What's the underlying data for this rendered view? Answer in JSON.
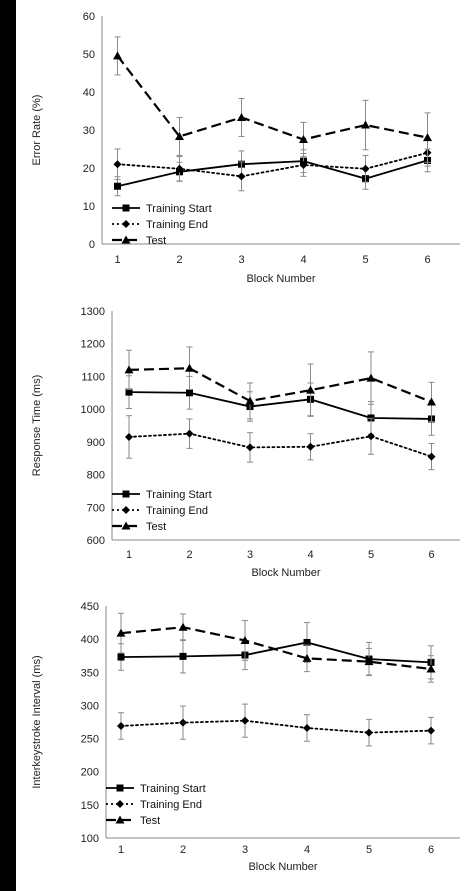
{
  "chart_data": [
    {
      "type": "line",
      "xlabel": "Block Number",
      "ylabel": "Error Rate (%)",
      "ylim": [
        0,
        60
      ],
      "yticks": [
        0,
        10,
        20,
        30,
        40,
        50,
        60
      ],
      "categories": [
        "1",
        "2",
        "3",
        "4",
        "5",
        "6"
      ],
      "legend": "bottom-left",
      "grid": false,
      "series": [
        {
          "name": "Training Start",
          "style": "solid",
          "marker": "square",
          "values": [
            15.2,
            19.0,
            21.0,
            21.8,
            17.2,
            22.0
          ],
          "errors": [
            2.5,
            2.5,
            3.5,
            3.0,
            2.8,
            3.0
          ]
        },
        {
          "name": "Training End",
          "style": "dotted",
          "marker": "diamond",
          "values": [
            21.0,
            19.8,
            17.8,
            20.8,
            19.8,
            24.0
          ],
          "errors": [
            4.0,
            3.2,
            3.8,
            3.0,
            3.5,
            3.5
          ]
        },
        {
          "name": "Test",
          "style": "dashed",
          "marker": "triangle",
          "values": [
            49.5,
            28.3,
            33.3,
            27.5,
            31.3,
            28.0
          ],
          "errors": [
            5.0,
            5.0,
            5.0,
            4.5,
            6.5,
            6.5
          ]
        }
      ]
    },
    {
      "type": "line",
      "xlabel": "Block Number",
      "ylabel": "Response Time (ms)",
      "ylim": [
        600,
        1300
      ],
      "yticks": [
        600,
        700,
        800,
        900,
        1000,
        1100,
        1200,
        1300
      ],
      "categories": [
        "1",
        "2",
        "3",
        "4",
        "5",
        "6"
      ],
      "legend": "bottom-left",
      "grid": false,
      "series": [
        {
          "name": "Training Start",
          "style": "solid",
          "marker": "square",
          "values": [
            1052,
            1050,
            1008,
            1030,
            973,
            970
          ],
          "errors": [
            50,
            50,
            45,
            50,
            50,
            50
          ]
        },
        {
          "name": "Training End",
          "style": "dotted",
          "marker": "diamond",
          "values": [
            915,
            925,
            883,
            885,
            917,
            855
          ],
          "errors": [
            65,
            45,
            45,
            40,
            55,
            40
          ]
        },
        {
          "name": "Test",
          "style": "dashed",
          "marker": "triangle",
          "values": [
            1120,
            1125,
            1025,
            1058,
            1095,
            1022
          ],
          "errors": [
            60,
            65,
            55,
            80,
            80,
            60
          ]
        }
      ]
    },
    {
      "type": "line",
      "xlabel": "Block Number",
      "ylabel": "Interkeystroke Interval (ms)",
      "ylim": [
        100,
        450
      ],
      "yticks": [
        100,
        150,
        200,
        250,
        300,
        350,
        400,
        450
      ],
      "categories": [
        "1",
        "2",
        "3",
        "4",
        "5",
        "6"
      ],
      "legend": "bottom-left",
      "grid": false,
      "series": [
        {
          "name": "Training Start",
          "style": "solid",
          "marker": "square",
          "values": [
            373,
            374,
            376,
            395,
            370,
            365
          ],
          "errors": [
            20,
            25,
            22,
            30,
            25,
            25
          ]
        },
        {
          "name": "Training End",
          "style": "dotted",
          "marker": "diamond",
          "values": [
            269,
            274,
            277,
            266,
            259,
            262
          ],
          "errors": [
            20,
            25,
            25,
            20,
            20,
            20
          ]
        },
        {
          "name": "Test",
          "style": "dashed",
          "marker": "triangle",
          "values": [
            409,
            418,
            398,
            371,
            366,
            355
          ],
          "errors": [
            30,
            20,
            30,
            20,
            20,
            20
          ]
        }
      ]
    }
  ]
}
